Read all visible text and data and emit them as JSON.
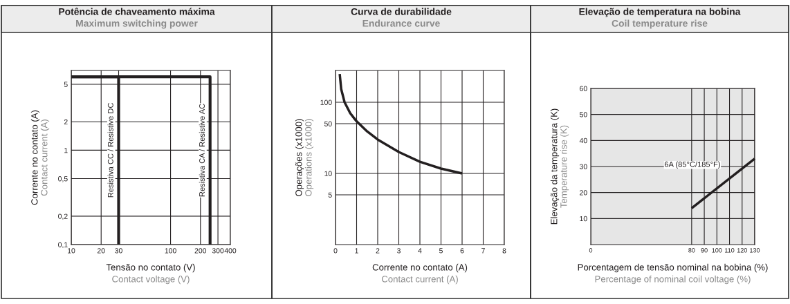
{
  "chart_data": [
    {
      "type": "line",
      "title": "Potência de chaveamento máxima",
      "subtitle": "Maximum switching power",
      "xlabel": "Tensão no contato (V)\nContact voltage (V)",
      "ylabel": "Corrente no contato (A)\nContact current (A)",
      "log": "xy",
      "grid": true,
      "legend": false,
      "marker": "none",
      "line_style": "solid",
      "xlim": [
        10,
        400
      ],
      "ylim": [
        0.1,
        7
      ],
      "xticks": [
        10,
        20,
        30,
        100,
        200,
        300,
        400
      ],
      "yticks": [
        {
          "value": 0.1,
          "label": "0,1"
        },
        {
          "value": 0.2,
          "label": "0,2"
        },
        {
          "value": 0.5,
          "label": "0,5"
        },
        1,
        2,
        5
      ],
      "series": [
        {
          "color": "#231f20",
          "x": [
            10,
            30,
            30
          ],
          "values": [
            6,
            6,
            0.1
          ]
        },
        {
          "color": "#231f20",
          "x": [
            10,
            250,
            250
          ],
          "values": [
            6,
            6,
            0.1
          ]
        }
      ],
      "annotations": [
        {
          "text": "Resistiva CC / Resistive DC",
          "x": 30,
          "y": 1
        },
        {
          "text": "Resistiva CA / Resistive AC",
          "x": 250,
          "y": 1
        }
      ]
    },
    {
      "type": "line",
      "title": "Curva de durabilidade",
      "subtitle": "Endurance curve",
      "xlabel": "Corrente no contato (A)\nContact current (A)",
      "ylabel": "Operações (x1000)\nOperations (x1000)",
      "log": "y",
      "grid": true,
      "legend": false,
      "marker": "none",
      "line_style": "solid",
      "xlim": [
        0,
        8
      ],
      "ylim": [
        1,
        280
      ],
      "xticks": [
        0,
        1,
        2,
        3,
        4,
        5,
        6,
        7,
        8
      ],
      "yticks": [
        5,
        10,
        50,
        100
      ],
      "series": [
        {
          "color": "#231f20",
          "x": [
            0.2,
            0.27,
            0.43,
            0.7,
            1,
            1.5,
            2,
            3,
            4,
            5,
            6
          ],
          "values": [
            250,
            153,
            100,
            70,
            54,
            39,
            30,
            20,
            14.6,
            11.7,
            10
          ]
        }
      ]
    },
    {
      "type": "line",
      "title": "Elevação de temperatura na bobina",
      "subtitle": "Coil temperature rise",
      "xlabel": "Porcentagem de tensão nominal na bobina (%)\nPercentage of nominal coil voltage (%)",
      "ylabel": "Elevação da temperatura (K)\nTemperature rise (K)",
      "grid": true,
      "legend": false,
      "marker": "none",
      "line_style": "solid",
      "xlim": [
        0,
        130
      ],
      "ylim": [
        0,
        60
      ],
      "xticks": [
        0,
        80,
        90,
        100,
        110,
        120,
        130
      ],
      "yticks": [
        10,
        20,
        30,
        40,
        50,
        60
      ],
      "series": [
        {
          "color": "#231f20",
          "x": [
            80,
            130
          ],
          "values": [
            14,
            33
          ]
        }
      ],
      "annotations": [
        "6A (85°C/185°F)"
      ]
    }
  ]
}
